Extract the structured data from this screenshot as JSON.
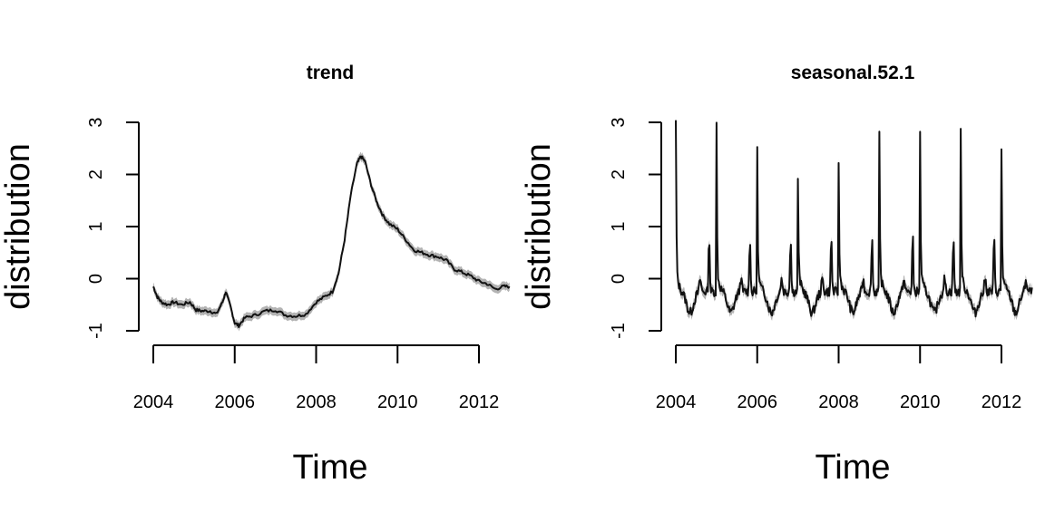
{
  "chart_data": [
    {
      "type": "line",
      "title": "trend",
      "xlabel": "Time",
      "ylabel": "distribution",
      "xlim": [
        2004,
        2012.75
      ],
      "ylim": [
        -1,
        3
      ],
      "x_ticks": [
        "2004",
        "2006",
        "2008",
        "2010",
        "2012"
      ],
      "y_ticks": [
        "-1",
        "0",
        "1",
        "2",
        "3"
      ],
      "grid": false,
      "series": [
        {
          "band_color": "#b3b3b3",
          "line_color": "#111111",
          "x": [
            2004.0,
            2004.1,
            2004.2,
            2004.35,
            2004.5,
            2004.7,
            2004.9,
            2005.05,
            2005.2,
            2005.4,
            2005.55,
            2005.7,
            2005.78,
            2005.9,
            2006.0,
            2006.1,
            2006.25,
            2006.5,
            2006.75,
            2007.0,
            2007.25,
            2007.5,
            2007.75,
            2008.0,
            2008.2,
            2008.4,
            2008.55,
            2008.7,
            2008.85,
            2009.0,
            2009.1,
            2009.2,
            2009.35,
            2009.5,
            2009.65,
            2009.8,
            2010.0,
            2010.2,
            2010.4,
            2010.6,
            2010.8,
            2011.0,
            2011.2,
            2011.4,
            2011.6,
            2011.8,
            2012.0,
            2012.2,
            2012.4,
            2012.6,
            2012.75
          ],
          "y": [
            -0.15,
            -0.35,
            -0.45,
            -0.5,
            -0.45,
            -0.5,
            -0.45,
            -0.6,
            -0.62,
            -0.62,
            -0.68,
            -0.45,
            -0.25,
            -0.55,
            -0.85,
            -0.9,
            -0.75,
            -0.7,
            -0.62,
            -0.6,
            -0.7,
            -0.72,
            -0.68,
            -0.45,
            -0.35,
            -0.25,
            0.1,
            0.75,
            1.6,
            2.2,
            2.35,
            2.25,
            1.8,
            1.45,
            1.2,
            1.05,
            0.95,
            0.75,
            0.55,
            0.5,
            0.45,
            0.42,
            0.35,
            0.18,
            0.12,
            0.05,
            -0.05,
            -0.1,
            -0.2,
            -0.15,
            -0.15
          ],
          "band_halfwidth": 0.08
        }
      ]
    },
    {
      "type": "line",
      "title": "seasonal.52.1",
      "xlabel": "Time",
      "ylabel": "distribution",
      "xlim": [
        2004,
        2012.75
      ],
      "ylim": [
        -1,
        3
      ],
      "x_ticks": [
        "2004",
        "2006",
        "2008",
        "2010",
        "2012"
      ],
      "y_ticks": [
        "-1",
        "0",
        "1",
        "2",
        "3"
      ],
      "grid": false,
      "peak_values": [
        3.0,
        2.95,
        2.45,
        1.95,
        2.15,
        2.75,
        2.85,
        2.85,
        2.5
      ],
      "series": [
        {
          "band_color": "#b3b3b3",
          "line_color": "#111111",
          "period_years": 1,
          "baseline": -0.25,
          "trough": -0.65,
          "secondary_peak": 0.85,
          "band_halfwidth": 0.1
        }
      ]
    }
  ]
}
